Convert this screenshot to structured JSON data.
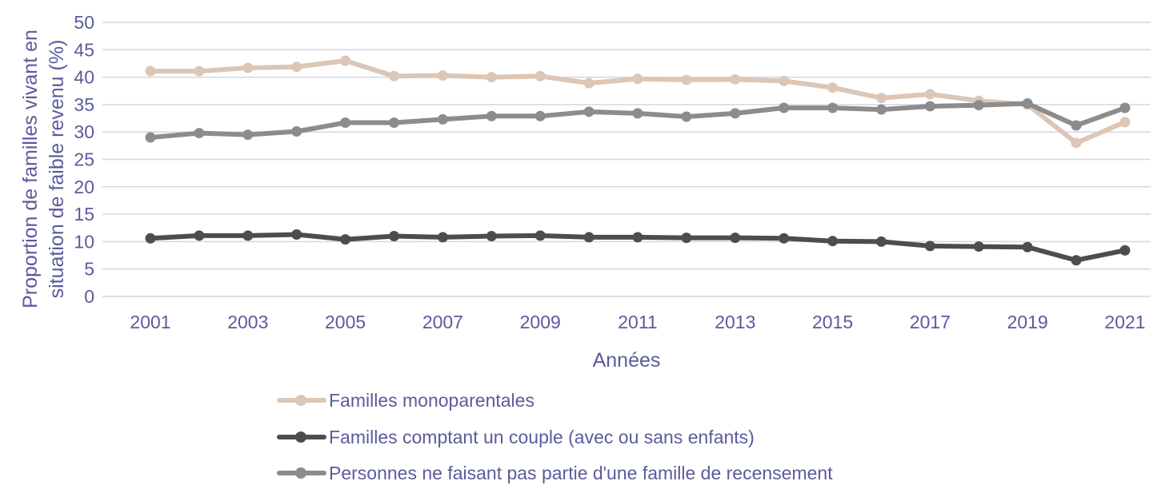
{
  "chart_data": {
    "type": "line",
    "title": "",
    "xlabel": "Années",
    "ylabel": "Proportion de familles vivant en situation de faible revenu (%)",
    "ylabel_lines": [
      "Proportion de familles vivant en",
      "situation de faible revenu (%)"
    ],
    "ylim": [
      0,
      50
    ],
    "yticks": [
      "0",
      "5",
      "10",
      "15",
      "20",
      "25",
      "30",
      "35",
      "40",
      "45",
      "50"
    ],
    "x": [
      2001,
      2002,
      2003,
      2004,
      2005,
      2006,
      2007,
      2008,
      2009,
      2010,
      2011,
      2012,
      2013,
      2014,
      2015,
      2016,
      2017,
      2018,
      2019,
      2020,
      2021
    ],
    "xticks": [
      "2001",
      "2003",
      "2005",
      "2007",
      "2009",
      "2011",
      "2013",
      "2015",
      "2017",
      "2019",
      "2021"
    ],
    "grid": true,
    "legend_position": "bottom",
    "series": [
      {
        "name": "Familles monoparentales",
        "color": "#dcc6b6",
        "values": [
          41.1,
          41.1,
          41.7,
          41.9,
          43.0,
          40.2,
          40.3,
          40.0,
          40.2,
          38.9,
          39.7,
          39.5,
          39.6,
          39.3,
          38.1,
          36.2,
          36.9,
          35.7,
          35.0,
          28.0,
          31.8
        ]
      },
      {
        "name": "Familles comptant un couple (avec ou sans enfants)",
        "color": "#4d4d4d",
        "values": [
          10.6,
          11.1,
          11.1,
          11.3,
          10.4,
          11.0,
          10.8,
          11.0,
          11.1,
          10.8,
          10.8,
          10.7,
          10.7,
          10.6,
          10.1,
          10.0,
          9.2,
          9.1,
          9.0,
          6.6,
          8.4
        ]
      },
      {
        "name": "Personnes ne faisant pas partie d'une famille de recensement",
        "color": "#8c8c8c",
        "values": [
          29.0,
          29.8,
          29.5,
          30.1,
          31.7,
          31.7,
          32.3,
          32.9,
          32.9,
          33.7,
          33.4,
          32.8,
          33.4,
          34.4,
          34.4,
          34.1,
          34.7,
          34.9,
          35.2,
          31.2,
          34.4
        ]
      }
    ]
  }
}
